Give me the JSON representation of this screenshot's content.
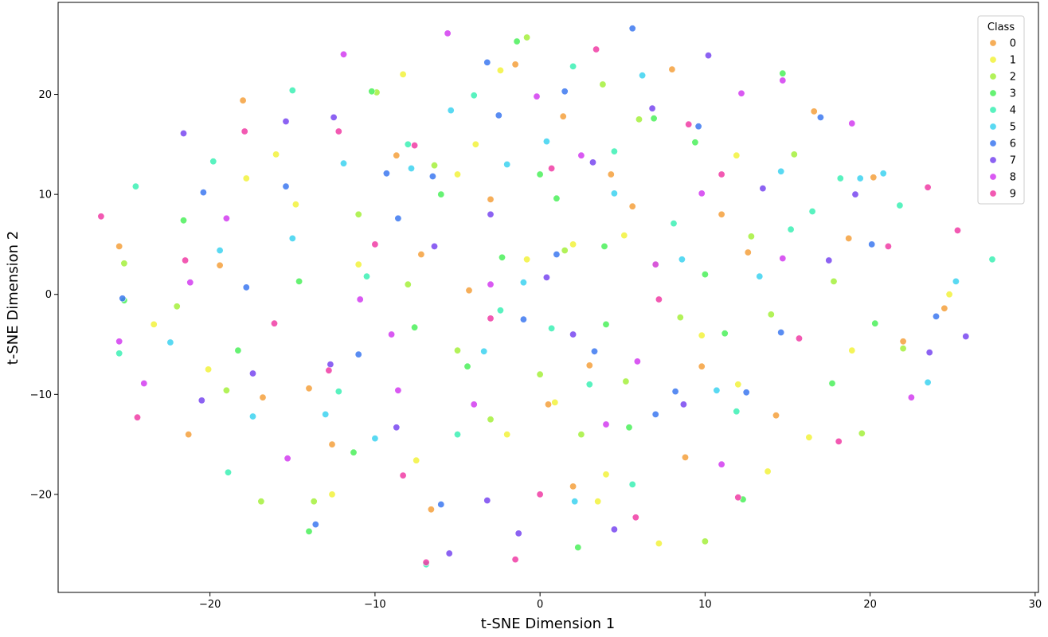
{
  "chart_data": {
    "type": "scatter",
    "title": "",
    "xlabel": "t-SNE Dimension 1",
    "ylabel": "t-SNE Dimension 2",
    "xlim": [
      -29.2,
      30.2
    ],
    "ylim": [
      -29.8,
      29.2
    ],
    "xticks": [
      -20,
      -10,
      0,
      10,
      20,
      30
    ],
    "yticks": [
      -20,
      -10,
      0,
      10,
      20
    ],
    "xtick_labels": [
      "−20",
      "−10",
      "0",
      "10",
      "20",
      "30"
    ],
    "ytick_labels": [
      "−20",
      "−10",
      "0",
      "10",
      "20"
    ],
    "grid": false,
    "legend": {
      "title": "Class",
      "placement": "top-right",
      "entries": [
        "0",
        "1",
        "2",
        "3",
        "4",
        "5",
        "6",
        "7",
        "8",
        "9"
      ]
    },
    "colors": [
      "#f5a03c",
      "#f2f23c",
      "#a5f03c",
      "#4bf05a",
      "#3cf0b4",
      "#3cd2f0",
      "#3c78f0",
      "#7846f0",
      "#d23cf0",
      "#f03ca5"
    ],
    "series": [
      {
        "name": "0",
        "points": [
          [
            -18,
            19.4
          ],
          [
            -25.5,
            4.8
          ],
          [
            -21.3,
            -14
          ],
          [
            -14,
            -9.4
          ],
          [
            -8.7,
            13.9
          ],
          [
            -6.6,
            -21.5
          ],
          [
            -4.3,
            0.4
          ],
          [
            1.4,
            17.8
          ],
          [
            2,
            -19.2
          ],
          [
            5.6,
            8.8
          ],
          [
            8,
            22.5
          ],
          [
            9.8,
            -7.2
          ],
          [
            12.6,
            4.2
          ],
          [
            16.6,
            18.3
          ],
          [
            20.2,
            11.7
          ],
          [
            22,
            -4.7
          ],
          [
            -12.6,
            -15
          ],
          [
            -7.2,
            4
          ],
          [
            -1.5,
            23
          ],
          [
            0.5,
            -11
          ],
          [
            4.3,
            12
          ],
          [
            8.8,
            -16.3
          ],
          [
            14.3,
            -12.1
          ],
          [
            18.7,
            5.6
          ],
          [
            24.5,
            -1.4
          ],
          [
            -16.8,
            -10.3
          ],
          [
            -19.4,
            2.9
          ],
          [
            -3,
            9.5
          ],
          [
            3,
            -7.1
          ],
          [
            11,
            8
          ]
        ]
      },
      {
        "name": "1",
        "points": [
          [
            -23.4,
            -3
          ],
          [
            -20.1,
            -7.5
          ],
          [
            -17.8,
            11.6
          ],
          [
            -14.8,
            9
          ],
          [
            -12.6,
            -20
          ],
          [
            -8.3,
            22
          ],
          [
            -7.5,
            -16.6
          ],
          [
            -3.9,
            15
          ],
          [
            -2.4,
            22.4
          ],
          [
            -0.8,
            3.5
          ],
          [
            0.9,
            -10.8
          ],
          [
            3.5,
            -20.7
          ],
          [
            5.1,
            5.9
          ],
          [
            7.2,
            -24.9
          ],
          [
            9.8,
            -4.1
          ],
          [
            11.9,
            13.9
          ],
          [
            13.8,
            -17.7
          ],
          [
            16.3,
            -14.3
          ],
          [
            18.9,
            -5.6
          ],
          [
            24.8,
            0
          ],
          [
            -5,
            12
          ],
          [
            2,
            5
          ],
          [
            -11,
            3
          ],
          [
            7,
            3
          ],
          [
            -2,
            -14
          ],
          [
            12,
            -9
          ],
          [
            -16,
            14
          ],
          [
            4,
            -18
          ]
        ]
      },
      {
        "name": "2",
        "points": [
          [
            -25.2,
            3.1
          ],
          [
            -22,
            -1.2
          ],
          [
            -16.9,
            -20.7
          ],
          [
            -13.7,
            -20.7
          ],
          [
            -9.9,
            20.2
          ],
          [
            -6.4,
            12.9
          ],
          [
            -5,
            -5.6
          ],
          [
            -3,
            -12.5
          ],
          [
            -0.8,
            25.7
          ],
          [
            1.5,
            4.4
          ],
          [
            3.8,
            21
          ],
          [
            5.2,
            -8.7
          ],
          [
            8.5,
            -2.3
          ],
          [
            10,
            -24.7
          ],
          [
            12.8,
            5.8
          ],
          [
            15.4,
            14
          ],
          [
            17.8,
            1.3
          ],
          [
            19.5,
            -13.9
          ],
          [
            22,
            -5.4
          ],
          [
            -19,
            -9.6
          ],
          [
            -11,
            8
          ],
          [
            0,
            -8
          ],
          [
            6,
            17.5
          ],
          [
            -8,
            1
          ],
          [
            2.5,
            -14
          ],
          [
            14,
            -2
          ]
        ]
      },
      {
        "name": "3",
        "points": [
          [
            -25.2,
            -0.6
          ],
          [
            -21.6,
            7.4
          ],
          [
            -18.3,
            -5.6
          ],
          [
            -14.6,
            1.3
          ],
          [
            -11.3,
            -15.8
          ],
          [
            -10.2,
            20.3
          ],
          [
            -7.6,
            -3.3
          ],
          [
            -4.4,
            -7.2
          ],
          [
            -2.3,
            3.7
          ],
          [
            -1.4,
            25.3
          ],
          [
            1,
            9.6
          ],
          [
            2.3,
            -25.3
          ],
          [
            3.9,
            4.8
          ],
          [
            5.4,
            -13.3
          ],
          [
            6.9,
            17.6
          ],
          [
            9.4,
            15.2
          ],
          [
            11.2,
            -3.9
          ],
          [
            12.3,
            -20.5
          ],
          [
            14.7,
            22.1
          ],
          [
            17.7,
            -8.9
          ],
          [
            20.3,
            -2.9
          ],
          [
            -14,
            -23.7
          ],
          [
            0,
            12
          ],
          [
            -6,
            10
          ],
          [
            4,
            -3
          ],
          [
            10,
            2
          ]
        ]
      },
      {
        "name": "4",
        "points": [
          [
            -25.5,
            -5.9
          ],
          [
            -24.5,
            10.8
          ],
          [
            -19.8,
            13.3
          ],
          [
            -18.9,
            -17.8
          ],
          [
            -15,
            20.4
          ],
          [
            -12.2,
            -9.7
          ],
          [
            -10.5,
            1.8
          ],
          [
            -6.9,
            -27
          ],
          [
            -4,
            19.9
          ],
          [
            -2.4,
            -1.6
          ],
          [
            0.7,
            -3.4
          ],
          [
            2,
            22.8
          ],
          [
            4.5,
            14.3
          ],
          [
            5.6,
            -19
          ],
          [
            8.1,
            7.1
          ],
          [
            11.9,
            -11.7
          ],
          [
            15.2,
            6.5
          ],
          [
            16.5,
            8.3
          ],
          [
            18.2,
            11.6
          ],
          [
            21.8,
            8.9
          ],
          [
            27.4,
            3.5
          ],
          [
            -8,
            15
          ],
          [
            3,
            -9
          ],
          [
            -5,
            -14
          ]
        ]
      },
      {
        "name": "5",
        "points": [
          [
            -22.4,
            -4.8
          ],
          [
            -19.4,
            4.4
          ],
          [
            -17.4,
            -12.2
          ],
          [
            -15,
            5.6
          ],
          [
            -11.9,
            13.1
          ],
          [
            -10,
            -14.4
          ],
          [
            -7.8,
            12.6
          ],
          [
            -5.4,
            18.4
          ],
          [
            -3.4,
            -5.7
          ],
          [
            -1,
            1.2
          ],
          [
            0.4,
            15.3
          ],
          [
            2.1,
            -20.7
          ],
          [
            4.5,
            10.1
          ],
          [
            6.2,
            21.9
          ],
          [
            8.6,
            3.5
          ],
          [
            10.7,
            -9.6
          ],
          [
            13.3,
            1.8
          ],
          [
            14.6,
            12.3
          ],
          [
            19.4,
            11.6
          ],
          [
            20.8,
            12.1
          ],
          [
            23.5,
            -8.8
          ],
          [
            25.2,
            1.3
          ],
          [
            -13,
            -12
          ],
          [
            -2,
            13
          ]
        ]
      },
      {
        "name": "6",
        "points": [
          [
            -25.3,
            -0.4
          ],
          [
            -20.4,
            10.2
          ],
          [
            -17.8,
            0.7
          ],
          [
            -15.4,
            10.8
          ],
          [
            -13.6,
            -23
          ],
          [
            -9.3,
            12.1
          ],
          [
            -8.6,
            7.6
          ],
          [
            -6.5,
            11.8
          ],
          [
            -3.2,
            23.2
          ],
          [
            -2.5,
            17.9
          ],
          [
            -1,
            -2.5
          ],
          [
            1.5,
            20.3
          ],
          [
            3.3,
            -5.7
          ],
          [
            5.6,
            26.6
          ],
          [
            8.2,
            -9.7
          ],
          [
            9.6,
            16.8
          ],
          [
            12.5,
            -9.8
          ],
          [
            14.6,
            -3.8
          ],
          [
            17,
            17.7
          ],
          [
            20.1,
            5
          ],
          [
            24,
            -2.2
          ],
          [
            -6,
            -21
          ],
          [
            1,
            4
          ],
          [
            7,
            -12
          ],
          [
            -11,
            -6
          ]
        ]
      },
      {
        "name": "7",
        "points": [
          [
            -21.6,
            16.1
          ],
          [
            -20.5,
            -10.6
          ],
          [
            -17.4,
            -7.9
          ],
          [
            -15.4,
            17.3
          ],
          [
            -12.7,
            -7
          ],
          [
            -12.5,
            17.7
          ],
          [
            -8.7,
            -13.3
          ],
          [
            -6.4,
            4.8
          ],
          [
            -5.5,
            -25.9
          ],
          [
            -3.2,
            -20.6
          ],
          [
            -1.3,
            -23.9
          ],
          [
            0.4,
            1.7
          ],
          [
            3.2,
            13.2
          ],
          [
            4.5,
            -23.5
          ],
          [
            6.8,
            18.6
          ],
          [
            8.7,
            -11
          ],
          [
            10.2,
            23.9
          ],
          [
            13.5,
            10.6
          ],
          [
            17.5,
            3.4
          ],
          [
            19.1,
            10
          ],
          [
            23.6,
            -5.8
          ],
          [
            25.8,
            -4.2
          ],
          [
            -3,
            8
          ],
          [
            2,
            -4
          ]
        ]
      },
      {
        "name": "8",
        "points": [
          [
            -25.5,
            -4.7
          ],
          [
            -24,
            -8.9
          ],
          [
            -21.2,
            1.2
          ],
          [
            -19,
            7.6
          ],
          [
            -15.3,
            -16.4
          ],
          [
            -11.9,
            24
          ],
          [
            -10.9,
            -0.5
          ],
          [
            -8.6,
            -9.6
          ],
          [
            -5.6,
            26.1
          ],
          [
            -3,
            1
          ],
          [
            -0.2,
            19.8
          ],
          [
            2.5,
            13.9
          ],
          [
            5.9,
            -6.7
          ],
          [
            9.8,
            10.1
          ],
          [
            12.2,
            20.1
          ],
          [
            14.7,
            21.4
          ],
          [
            14.7,
            3.6
          ],
          [
            18.9,
            17.1
          ],
          [
            22.5,
            -10.3
          ],
          [
            -4,
            -11
          ],
          [
            7,
            3
          ],
          [
            -9,
            -4
          ],
          [
            4,
            -13
          ],
          [
            11,
            -17
          ]
        ]
      },
      {
        "name": "9",
        "points": [
          [
            -26.6,
            7.8
          ],
          [
            -24.4,
            -12.3
          ],
          [
            -21.5,
            3.4
          ],
          [
            -17.9,
            16.3
          ],
          [
            -16.1,
            -2.9
          ],
          [
            -12.8,
            -7.6
          ],
          [
            -12.2,
            16.3
          ],
          [
            -8.3,
            -18.1
          ],
          [
            -7.6,
            14.9
          ],
          [
            -6.9,
            -26.8
          ],
          [
            -3,
            -2.4
          ],
          [
            -1.5,
            -26.5
          ],
          [
            0.7,
            12.6
          ],
          [
            3.4,
            24.5
          ],
          [
            5.8,
            -22.3
          ],
          [
            7.2,
            -0.5
          ],
          [
            11,
            12
          ],
          [
            12,
            -20.3
          ],
          [
            15.7,
            -4.4
          ],
          [
            18.1,
            -14.7
          ],
          [
            21.1,
            4.8
          ],
          [
            23.5,
            10.7
          ],
          [
            25.3,
            6.4
          ],
          [
            -10,
            5
          ],
          [
            0,
            -20
          ],
          [
            9,
            17
          ]
        ]
      }
    ]
  }
}
